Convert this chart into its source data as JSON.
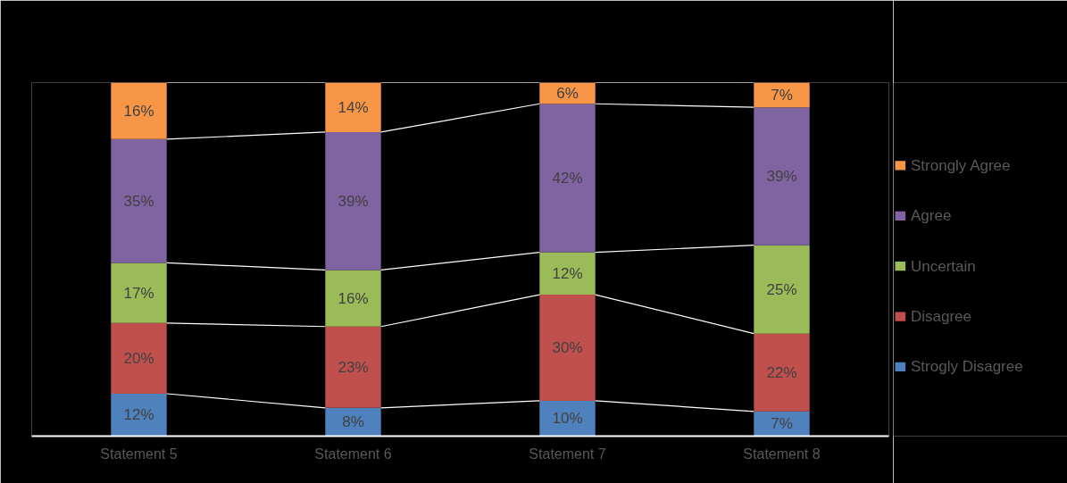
{
  "chart_data": {
    "type": "bar",
    "stacked": true,
    "categories": [
      "Statement 5",
      "Statement 6",
      "Statement 7",
      "Statement 8"
    ],
    "ylim": [
      0,
      100
    ],
    "tick_labels": "x",
    "grid": false,
    "legend": "right",
    "series": [
      {
        "name": "Strogly Disagree",
        "color": "#4f81bd",
        "values": [
          12,
          8,
          10,
          7
        ],
        "value_labels": [
          "12%",
          "8%",
          "10%",
          "7%"
        ]
      },
      {
        "name": "Disagree",
        "color": "#c0504d",
        "values": [
          20,
          23,
          30,
          22
        ],
        "value_labels": [
          "20%",
          "23%",
          "30%",
          "22%"
        ]
      },
      {
        "name": "Uncertain",
        "color": "#9bbb59",
        "values": [
          17,
          16,
          12,
          25
        ],
        "value_labels": [
          "17%",
          "16%",
          "12%",
          "25%"
        ]
      },
      {
        "name": "Agree",
        "color": "#8064a2",
        "values": [
          35,
          39,
          42,
          39
        ],
        "value_labels": [
          "35%",
          "39%",
          "42%",
          "39%"
        ]
      },
      {
        "name": "Strongly Agree",
        "color": "#f79646",
        "values": [
          16,
          14,
          6,
          7
        ],
        "value_labels": [
          "16%",
          "14%",
          "6%",
          "7%"
        ]
      }
    ]
  }
}
